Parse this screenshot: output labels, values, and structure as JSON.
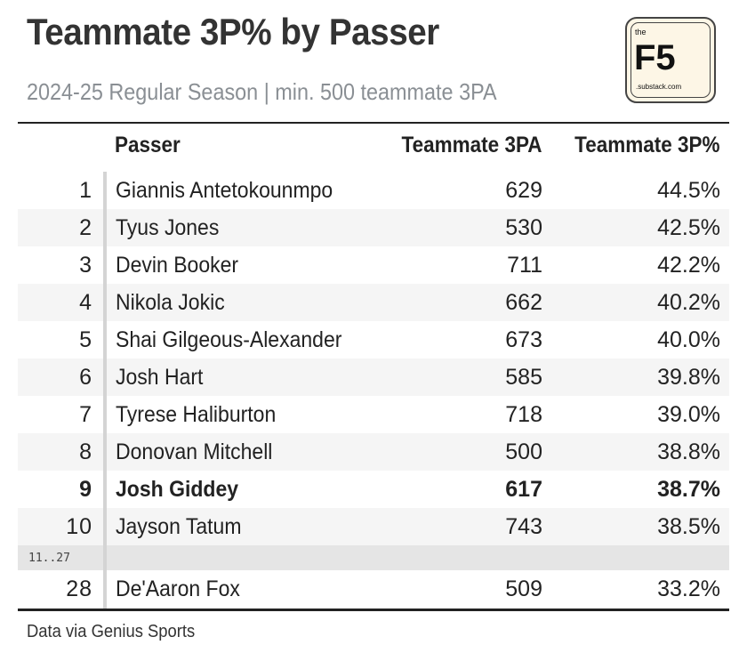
{
  "header": {
    "title": "Teammate 3P% by Passer",
    "subtitle": "2024-25 Regular Season | min. 500 teammate 3PA"
  },
  "logo": {
    "the": "the",
    "brand": "F5",
    "domain": ".substack.com"
  },
  "table": {
    "columns": {
      "passer": "Passer",
      "attempts": "Teammate 3PA",
      "percent": "Teammate 3P%"
    },
    "rows": [
      {
        "rank": "1",
        "name": "Giannis Antetokounmpo",
        "attempts": "629",
        "percent": "44.5%"
      },
      {
        "rank": "2",
        "name": "Tyus Jones",
        "attempts": "530",
        "percent": "42.5%"
      },
      {
        "rank": "3",
        "name": "Devin Booker",
        "attempts": "711",
        "percent": "42.2%"
      },
      {
        "rank": "4",
        "name": "Nikola Jokic",
        "attempts": "662",
        "percent": "40.2%"
      },
      {
        "rank": "5",
        "name": "Shai Gilgeous-Alexander",
        "attempts": "673",
        "percent": "40.0%"
      },
      {
        "rank": "6",
        "name": "Josh Hart",
        "attempts": "585",
        "percent": "39.8%"
      },
      {
        "rank": "7",
        "name": "Tyrese Haliburton",
        "attempts": "718",
        "percent": "39.0%"
      },
      {
        "rank": "8",
        "name": "Donovan Mitchell",
        "attempts": "500",
        "percent": "38.8%"
      },
      {
        "rank": "9",
        "name": "Josh Giddey",
        "attempts": "617",
        "percent": "38.7%"
      },
      {
        "rank": "10",
        "name": "Jayson Tatum",
        "attempts": "743",
        "percent": "38.5%"
      }
    ],
    "gap_label": "11..27",
    "last_row": {
      "rank": "28",
      "name": "De'Aaron Fox",
      "attempts": "509",
      "percent": "33.2%"
    },
    "highlighted_rank": "9"
  },
  "footer": {
    "source": "Data via Genius Sports"
  }
}
